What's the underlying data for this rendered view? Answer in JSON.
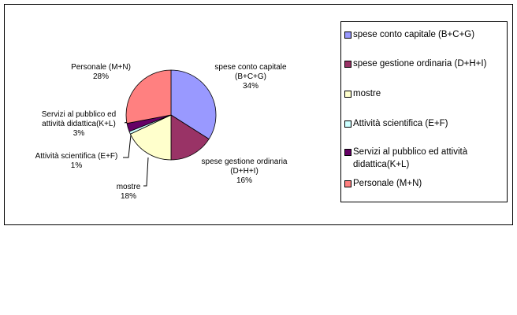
{
  "chart_data": {
    "type": "pie",
    "categories": [
      "spese conto capitale (B+C+G)",
      "spese gestione ordinaria (D+H+I)",
      "mostre",
      "Attività scientifica (E+F)",
      "Servizi al pubblico ed attività didattica(K+L)",
      "Personale (M+N)"
    ],
    "values": [
      34,
      16,
      18,
      1,
      3,
      28
    ],
    "value_labels": [
      "34%",
      "16%",
      "18%",
      "1%",
      "3%",
      "28%"
    ],
    "colors": [
      "#9999ff",
      "#993366",
      "#ffffcc",
      "#ccffff",
      "#660066",
      "#ff8080"
    ]
  }
}
